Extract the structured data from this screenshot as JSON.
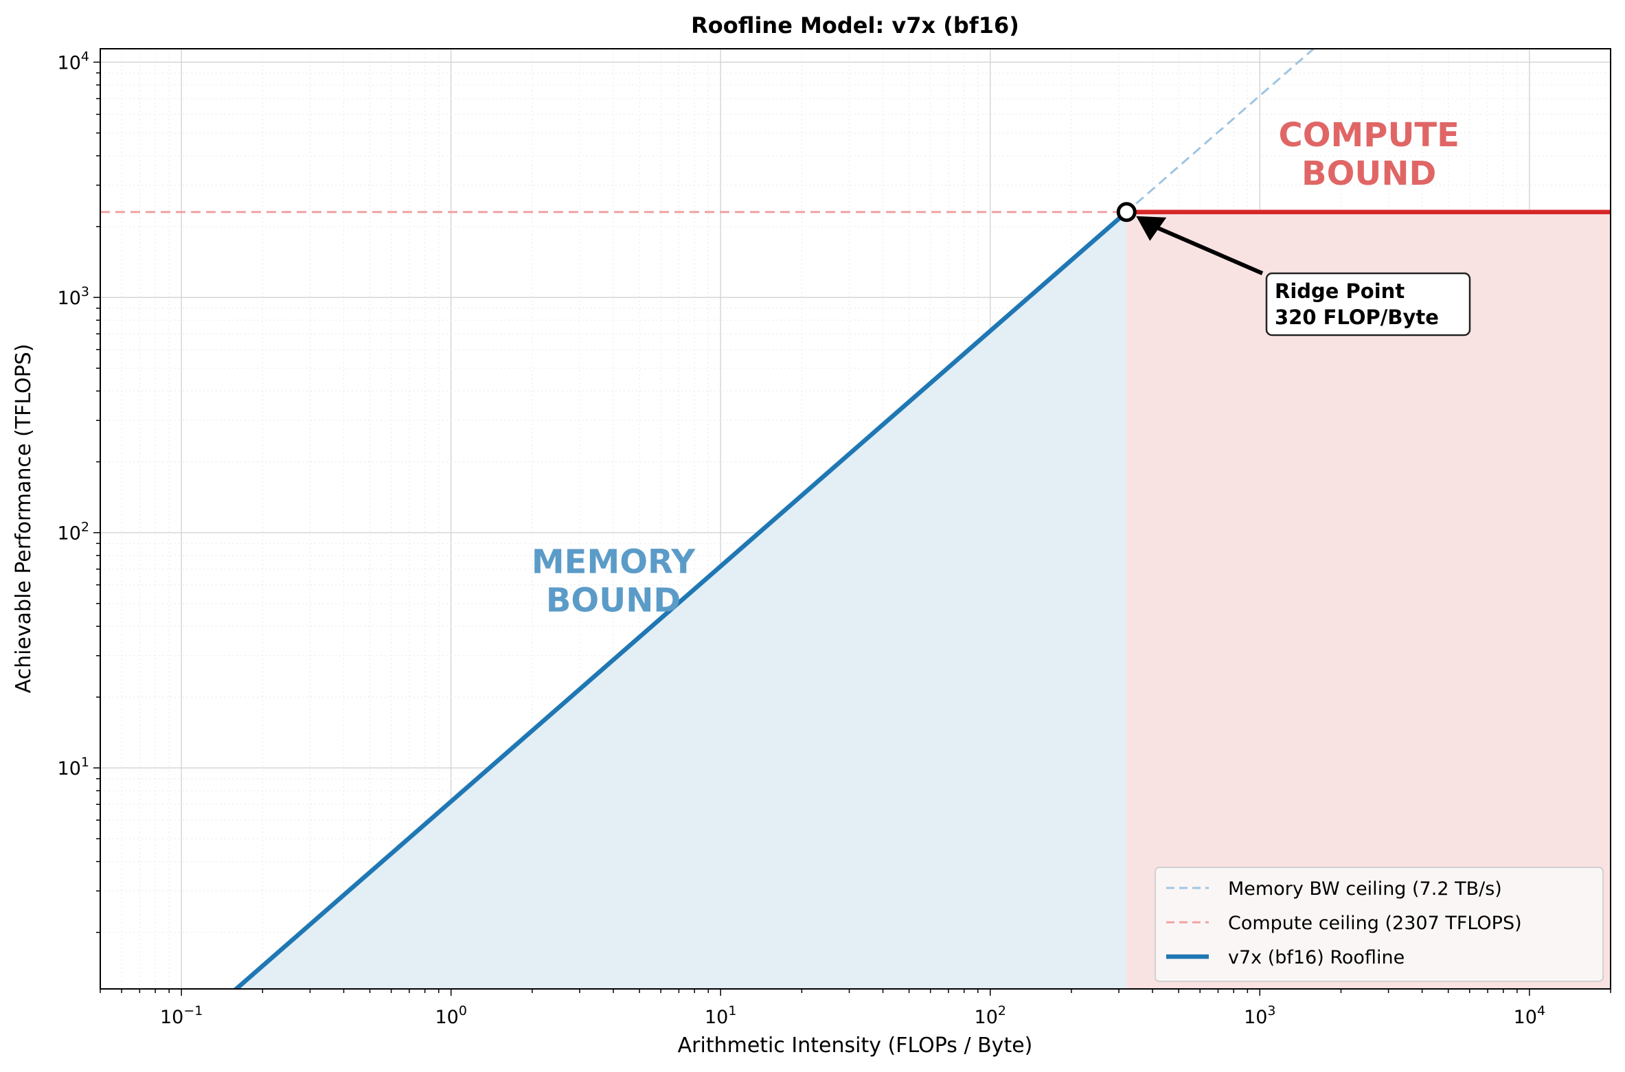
{
  "chart_data": {
    "type": "line",
    "title": "Roofline Model: v7x (bf16)",
    "xlabel": "Arithmetic Intensity (FLOPs / Byte)",
    "ylabel": "Achievable Performance (TFLOPS)",
    "xscale": "log",
    "yscale": "log",
    "xlim": [
      0.05,
      20000
    ],
    "ylim": [
      1.15,
      11400
    ],
    "grid": true,
    "x_ticks": [
      {
        "v": 0.1,
        "base": "10",
        "exp": "−1"
      },
      {
        "v": 1,
        "base": "10",
        "exp": "0"
      },
      {
        "v": 10,
        "base": "10",
        "exp": "1"
      },
      {
        "v": 100,
        "base": "10",
        "exp": "2"
      },
      {
        "v": 1000,
        "base": "10",
        "exp": "3"
      },
      {
        "v": 10000,
        "base": "10",
        "exp": "4"
      }
    ],
    "y_ticks": [
      {
        "v": 10,
        "base": "10",
        "exp": "1"
      },
      {
        "v": 100,
        "base": "10",
        "exp": "2"
      },
      {
        "v": 1000,
        "base": "10",
        "exp": "3"
      },
      {
        "v": 10000,
        "base": "10",
        "exp": "4"
      }
    ],
    "memory_bandwidth_tbps": 7.2,
    "peak_tflops": 2307,
    "ridge_point": 320,
    "series": [
      {
        "name": "Memory BW ceiling (7.2 TB/s)",
        "style": "dashed",
        "color": "#9ec5e3",
        "x": [
          0.05,
          20000
        ],
        "y": [
          0.36,
          144000
        ]
      },
      {
        "name": "Compute ceiling (2307 TFLOPS)",
        "style": "dashed",
        "color": "#f0a2a3",
        "x": [
          0.05,
          20000
        ],
        "y": [
          2307,
          2307
        ]
      },
      {
        "name": "v7x (bf16) Roofline",
        "style": "solid",
        "color": "#1f77b4",
        "x": [
          0.05,
          320.4
        ],
        "y": [
          0.36,
          2307
        ]
      }
    ],
    "compute_roof_color": "#d62728",
    "memory_fill_color": "#e3eef5",
    "compute_fill_color": "#f9e2e2",
    "annotations": {
      "memory_region": {
        "lines": [
          "MEMORY",
          "BOUND"
        ],
        "at": [
          4.0,
          63
        ],
        "color": "#5b9bc8"
      },
      "compute_region": {
        "lines": [
          "COMPUTE",
          "BOUND"
        ],
        "at": [
          2540,
          4100
        ],
        "color": "#e06666"
      },
      "ridge": {
        "lines": [
          "Ridge Point",
          "320 FLOP/Byte"
        ]
      }
    },
    "legend_placement": "lower-right"
  }
}
